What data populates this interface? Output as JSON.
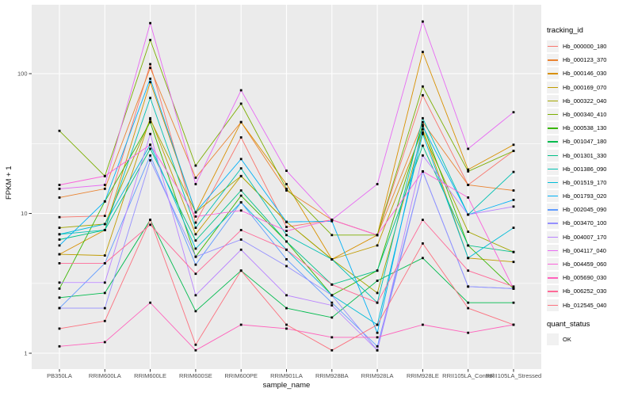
{
  "chart_data": {
    "type": "line",
    "title": "",
    "xlabel": "sample_name",
    "ylabel": "FPKM + 1",
    "y_scale": "log10",
    "grid": true,
    "legend_position": "right",
    "ylim": [
      0.85,
      310
    ],
    "y_ticks": [
      {
        "value": 1,
        "label": "1"
      },
      {
        "value": 10,
        "label": "10"
      },
      {
        "value": 100,
        "label": "100"
      }
    ],
    "y_minor_ticks": [
      3.162,
      31.62
    ],
    "categories": [
      "PB350LA",
      "RRIM600LA",
      "RRIM600LE",
      "RRIM600SE",
      "RRIM600PE",
      "RRIM901LA",
      "RRIM928BA",
      "RRIM928LA",
      "RRIM928LE",
      "RRII105LA_Control",
      "RRII105LA_Stressed"
    ],
    "series": [
      {
        "name": "Hb_000000_180",
        "color": "#F8766D",
        "values": [
          9.4,
          9.6,
          117,
          8.6,
          35,
          8,
          9,
          7,
          70,
          16,
          28
        ]
      },
      {
        "name": "Hb_000123_370",
        "color": "#EA8331",
        "values": [
          13,
          15,
          110,
          18,
          45,
          14.6,
          9,
          7,
          45,
          16,
          14.6
        ]
      },
      {
        "name": "Hb_000146_030",
        "color": "#D89000",
        "values": [
          5.1,
          7.6,
          87,
          10.2,
          45,
          16.2,
          4.7,
          7,
          143,
          20.6,
          31
        ]
      },
      {
        "name": "Hb_000169_070",
        "color": "#C09B00",
        "values": [
          5.1,
          5,
          48,
          7.1,
          18.5,
          8.7,
          4.7,
          5.9,
          40,
          4.8,
          4.5
        ]
      },
      {
        "name": "Hb_000322_040",
        "color": "#A3A500",
        "values": [
          7.9,
          8.4,
          47,
          10.2,
          18.5,
          8.7,
          4.7,
          2.7,
          38,
          7.4,
          5.3
        ]
      },
      {
        "name": "Hb_000340_410",
        "color": "#7CAE00",
        "values": [
          39,
          18.5,
          174,
          22,
          61,
          15,
          7,
          7,
          81,
          20,
          28
        ]
      },
      {
        "name": "Hb_000538_130",
        "color": "#39B600",
        "values": [
          2.9,
          12.2,
          45,
          4.9,
          13.4,
          6.3,
          2.6,
          3.9,
          43,
          5.9,
          2.9
        ]
      },
      {
        "name": "Hb_001047_180",
        "color": "#00BB4E",
        "values": [
          2.5,
          2.7,
          9,
          2,
          3.9,
          2.1,
          1.8,
          3.3,
          4.8,
          2.3,
          2.3
        ]
      },
      {
        "name": "Hb_001301_330",
        "color": "#00C087",
        "values": [
          6.5,
          7.6,
          29,
          6.4,
          14.6,
          6.3,
          3.1,
          3.9,
          30.5,
          5.9,
          5.3
        ]
      },
      {
        "name": "Hb_001386_090",
        "color": "#00C0B2",
        "values": [
          7.1,
          7.6,
          67,
          7.9,
          21,
          7,
          4.7,
          2.3,
          48,
          9.8,
          19.8
        ]
      },
      {
        "name": "Hb_001519_170",
        "color": "#00BCD8",
        "values": [
          7.1,
          8.4,
          31,
          5.6,
          12,
          5.5,
          2.6,
          1.6,
          37,
          4.8,
          7.9
        ]
      },
      {
        "name": "Hb_001793_020",
        "color": "#00B0F6",
        "values": [
          5.9,
          12.2,
          92,
          10.2,
          24.5,
          8.7,
          8.8,
          1.4,
          42,
          9.8,
          12.5
        ]
      },
      {
        "name": "Hb_002045_090",
        "color": "#619CFF",
        "values": [
          2.1,
          4.4,
          26,
          4.3,
          12,
          4.7,
          2.3,
          1.12,
          20,
          3,
          2.9
        ]
      },
      {
        "name": "Hb_003470_100",
        "color": "#9590FF",
        "values": [
          2.1,
          2.1,
          24,
          4.9,
          6.5,
          4.2,
          2.6,
          1.05,
          20,
          3,
          2.9
        ]
      },
      {
        "name": "Hb_004007_170",
        "color": "#B983FF",
        "values": [
          3.2,
          3.2,
          37,
          2.6,
          5.5,
          2.6,
          2.2,
          1.05,
          26,
          9.8,
          11.2
        ]
      },
      {
        "name": "Hb_004117_040",
        "color": "#E76BF3",
        "values": [
          15,
          16,
          230,
          16.2,
          76,
          20.2,
          9,
          16.2,
          236,
          29,
          53
        ]
      },
      {
        "name": "Hb_004459_060",
        "color": "#FA62DB",
        "values": [
          16,
          18.5,
          31,
          9.5,
          10.5,
          7.5,
          9,
          7,
          20,
          13,
          2.9
        ]
      },
      {
        "name": "Hb_005690_030",
        "color": "#FF62BC",
        "values": [
          1.12,
          1.2,
          2.3,
          1.05,
          1.6,
          1.5,
          1.3,
          1.3,
          1.6,
          1.4,
          1.6
        ]
      },
      {
        "name": "Hb_006252_030",
        "color": "#FF6A98",
        "values": [
          4.4,
          4.4,
          8.3,
          3.7,
          7.6,
          5.5,
          3.1,
          2.3,
          9,
          3.9,
          3
        ]
      },
      {
        "name": "Hb_012545_040",
        "color": "#FC717F",
        "values": [
          1.5,
          1.7,
          9,
          1.15,
          3.9,
          1.6,
          1.05,
          1.6,
          6.1,
          2.1,
          1.6
        ]
      }
    ]
  },
  "legend": {
    "tracking_title": "tracking_id",
    "quant_title": "quant_status",
    "quant_label": "OK"
  },
  "colors": {
    "panel_bg": "#EBEBEB",
    "grid": "#FFFFFF",
    "tick_mark": "#333333",
    "tick_text": "#4D4D4D",
    "point": "#000000",
    "legend_key_bg": "#F1F1F1"
  }
}
